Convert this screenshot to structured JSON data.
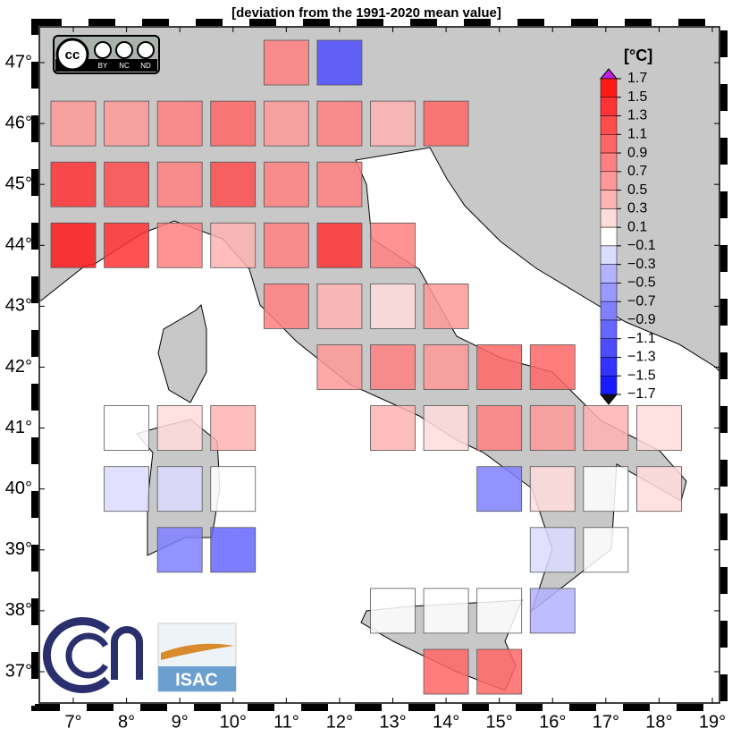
{
  "title": "[deviation from the 1991-2020 mean value]",
  "lon_ticks": [
    {
      "value": 7,
      "label": "7°"
    },
    {
      "value": 8,
      "label": "8°"
    },
    {
      "value": 9,
      "label": "9°"
    },
    {
      "value": 10,
      "label": "10°"
    },
    {
      "value": 11,
      "label": "11°"
    },
    {
      "value": 12,
      "label": "12°"
    },
    {
      "value": 13,
      "label": "13°"
    },
    {
      "value": 14,
      "label": "14°"
    },
    {
      "value": 15,
      "label": "15°"
    },
    {
      "value": 16,
      "label": "16°"
    },
    {
      "value": 17,
      "label": "17°"
    },
    {
      "value": 18,
      "label": "18°"
    },
    {
      "value": 19,
      "label": "19°"
    }
  ],
  "lat_ticks": [
    {
      "value": 47,
      "label": "47°"
    },
    {
      "value": 46,
      "label": "46°"
    },
    {
      "value": 45,
      "label": "45°"
    },
    {
      "value": 44,
      "label": "44°"
    },
    {
      "value": 43,
      "label": "43°"
    },
    {
      "value": 42,
      "label": "42°"
    },
    {
      "value": 41,
      "label": "41°"
    },
    {
      "value": 40,
      "label": "40°"
    },
    {
      "value": 39,
      "label": "39°"
    },
    {
      "value": 38,
      "label": "38°"
    },
    {
      "value": 37,
      "label": "37°"
    }
  ],
  "colorbar": {
    "unit": "[°C]",
    "levels": [
      {
        "value": 1.7,
        "label": "1.7"
      },
      {
        "value": 1.5,
        "label": "1.5"
      },
      {
        "value": 1.3,
        "label": "1.3"
      },
      {
        "value": 1.1,
        "label": "1.1"
      },
      {
        "value": 0.9,
        "label": "0.9"
      },
      {
        "value": 0.7,
        "label": "0.7"
      },
      {
        "value": 0.5,
        "label": "0.5"
      },
      {
        "value": 0.3,
        "label": "0.3"
      },
      {
        "value": 0.1,
        "label": "0.1"
      },
      {
        "value": -0.1,
        "label": "−0.1"
      },
      {
        "value": -0.3,
        "label": "−0.3"
      },
      {
        "value": -0.5,
        "label": "−0.5"
      },
      {
        "value": -0.7,
        "label": "−0.7"
      },
      {
        "value": -0.9,
        "label": "−0.9"
      },
      {
        "value": -1.1,
        "label": "−1.1"
      },
      {
        "value": -1.3,
        "label": "−1.3"
      },
      {
        "value": -1.5,
        "label": "−1.5"
      },
      {
        "value": -1.7,
        "label": "−1.7"
      }
    ],
    "colors": [
      "#ff1a1a",
      "#ff3333",
      "#ff4d4d",
      "#ff6666",
      "#ff8080",
      "#ff9999",
      "#ffb3b3",
      "#ffdcdc",
      "#ffffff",
      "#dcdcff",
      "#b3b3ff",
      "#9999ff",
      "#8080ff",
      "#6666ff",
      "#4d4dff",
      "#3333ff",
      "#1a1aff"
    ],
    "over_color": "#c020e0",
    "under_color": "#111111"
  },
  "cells": [
    {
      "lon": 11,
      "lat": 47,
      "value": 0.8
    },
    {
      "lon": 12,
      "lat": 47,
      "value": -1.2
    },
    {
      "lon": 7,
      "lat": 46,
      "value": 0.6
    },
    {
      "lon": 8,
      "lat": 46,
      "value": 0.6
    },
    {
      "lon": 9,
      "lat": 46,
      "value": 0.8
    },
    {
      "lon": 10,
      "lat": 46,
      "value": 1.0
    },
    {
      "lon": 11,
      "lat": 46,
      "value": 0.6
    },
    {
      "lon": 12,
      "lat": 46,
      "value": 0.8
    },
    {
      "lon": 13,
      "lat": 46,
      "value": 0.4
    },
    {
      "lon": 14,
      "lat": 46,
      "value": 1.0
    },
    {
      "lon": 7,
      "lat": 45,
      "value": 1.4
    },
    {
      "lon": 8,
      "lat": 45,
      "value": 1.2
    },
    {
      "lon": 9,
      "lat": 45,
      "value": 0.8
    },
    {
      "lon": 10,
      "lat": 45,
      "value": 1.2
    },
    {
      "lon": 11,
      "lat": 45,
      "value": 0.8
    },
    {
      "lon": 12,
      "lat": 45,
      "value": 0.8
    },
    {
      "lon": 7,
      "lat": 44,
      "value": 1.6
    },
    {
      "lon": 8,
      "lat": 44,
      "value": 1.4
    },
    {
      "lon": 9,
      "lat": 44,
      "value": 0.8
    },
    {
      "lon": 10,
      "lat": 44,
      "value": 0.4
    },
    {
      "lon": 11,
      "lat": 44,
      "value": 0.8
    },
    {
      "lon": 12,
      "lat": 44,
      "value": 1.4
    },
    {
      "lon": 13,
      "lat": 44,
      "value": 0.8
    },
    {
      "lon": 11,
      "lat": 43,
      "value": 0.8
    },
    {
      "lon": 12,
      "lat": 43,
      "value": 0.4
    },
    {
      "lon": 13,
      "lat": 43,
      "value": 0.2
    },
    {
      "lon": 14,
      "lat": 43,
      "value": 0.6
    },
    {
      "lon": 12,
      "lat": 42,
      "value": 0.6
    },
    {
      "lon": 13,
      "lat": 42,
      "value": 0.8
    },
    {
      "lon": 14,
      "lat": 42,
      "value": 0.6
    },
    {
      "lon": 15,
      "lat": 42,
      "value": 1.0
    },
    {
      "lon": 16,
      "lat": 42,
      "value": 1.0
    },
    {
      "lon": 8,
      "lat": 41,
      "value": 0.0
    },
    {
      "lon": 9,
      "lat": 41,
      "value": 0.2
    },
    {
      "lon": 10,
      "lat": 41,
      "value": 0.4
    },
    {
      "lon": 13,
      "lat": 41,
      "value": 0.4
    },
    {
      "lon": 14,
      "lat": 41,
      "value": 0.2
    },
    {
      "lon": 15,
      "lat": 41,
      "value": 0.8
    },
    {
      "lon": 16,
      "lat": 41,
      "value": 0.6
    },
    {
      "lon": 17,
      "lat": 41,
      "value": 0.4
    },
    {
      "lon": 18,
      "lat": 41,
      "value": 0.2
    },
    {
      "lon": 8,
      "lat": 40,
      "value": -0.2
    },
    {
      "lon": 9,
      "lat": 40,
      "value": -0.2
    },
    {
      "lon": 10,
      "lat": 40,
      "value": 0.0
    },
    {
      "lon": 15,
      "lat": 40,
      "value": -0.8
    },
    {
      "lon": 16,
      "lat": 40,
      "value": 0.2
    },
    {
      "lon": 17,
      "lat": 40,
      "value": 0.0
    },
    {
      "lon": 18,
      "lat": 40,
      "value": 0.2
    },
    {
      "lon": 9,
      "lat": 39,
      "value": -0.8
    },
    {
      "lon": 10,
      "lat": 39,
      "value": -1.0
    },
    {
      "lon": 16,
      "lat": 39,
      "value": -0.2
    },
    {
      "lon": 17,
      "lat": 39,
      "value": 0.0
    },
    {
      "lon": 13,
      "lat": 38,
      "value": 0.0
    },
    {
      "lon": 14,
      "lat": 38,
      "value": 0.0
    },
    {
      "lon": 15,
      "lat": 38,
      "value": 0.0
    },
    {
      "lon": 16,
      "lat": 38,
      "value": -0.4
    },
    {
      "lon": 14,
      "lat": 37,
      "value": 1.0
    },
    {
      "lon": 15,
      "lat": 37,
      "value": 1.0
    }
  ],
  "logos": {
    "cc": "cc",
    "license": [
      "BY",
      "NC",
      "ND"
    ],
    "institute": "ISAC"
  }
}
